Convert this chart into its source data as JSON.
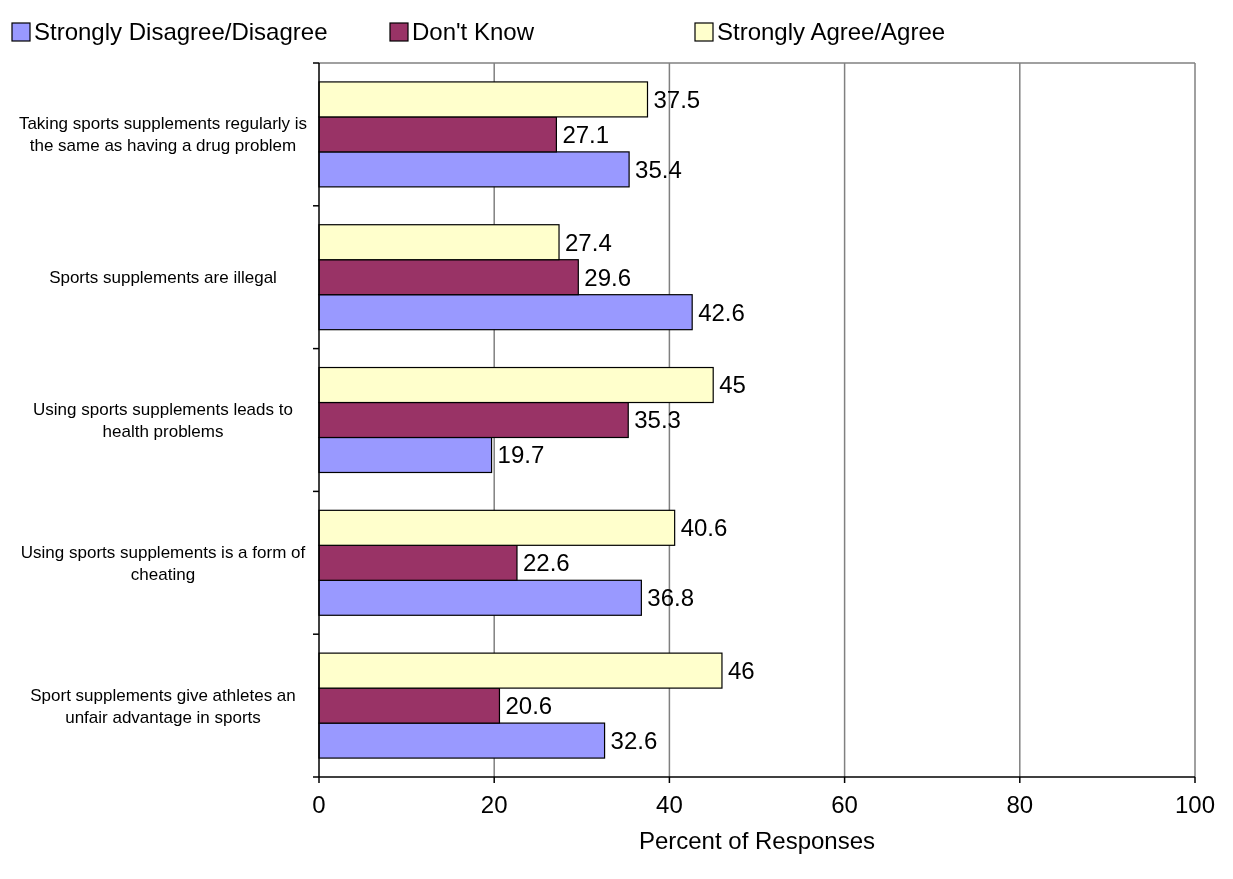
{
  "chart_data": {
    "type": "bar",
    "orientation": "horizontal",
    "xlabel": "Percent of Responses",
    "categories": [
      "Taking sports supplements regularly is the same as having a drug problem",
      "Sports supplements are illegal",
      "Using sports supplements leads to health problems",
      "Using sports supplements is a form of cheating",
      "Sport supplements give athletes an unfair advantage in sports"
    ],
    "series": [
      {
        "name": "Strongly Disagree/Disagree",
        "color": "#9999ff",
        "values": [
          35.4,
          42.6,
          19.7,
          36.8,
          32.6
        ]
      },
      {
        "name": "Don't Know",
        "color": "#993366",
        "values": [
          27.1,
          29.6,
          35.3,
          22.6,
          20.6
        ]
      },
      {
        "name": "Strongly Agree/Agree",
        "color": "#ffffcc",
        "values": [
          37.5,
          27.4,
          45,
          40.6,
          46
        ]
      }
    ],
    "xlim": [
      0,
      100
    ],
    "xticks": [
      0,
      20,
      40,
      60,
      80,
      100
    ],
    "grid": "x",
    "legend": "top",
    "data_labels": true
  }
}
